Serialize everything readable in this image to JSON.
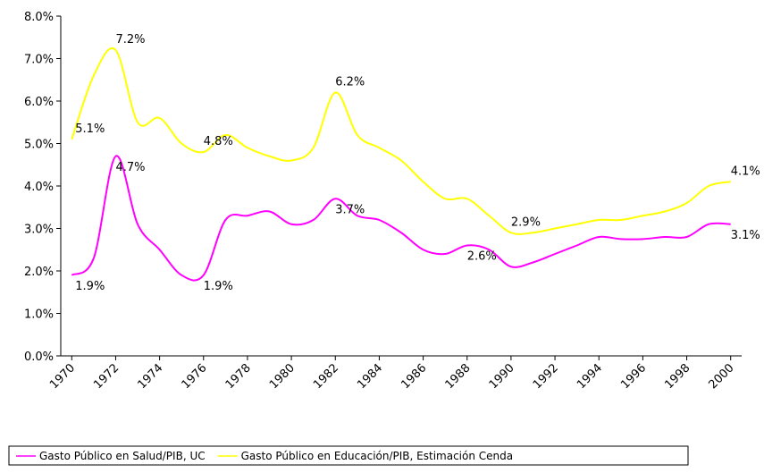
{
  "chart_data": {
    "type": "line",
    "x": [
      1970,
      1971,
      1972,
      1973,
      1974,
      1975,
      1976,
      1977,
      1978,
      1979,
      1980,
      1981,
      1982,
      1983,
      1984,
      1985,
      1986,
      1987,
      1988,
      1989,
      1990,
      1991,
      1992,
      1993,
      1994,
      1995,
      1996,
      1997,
      1998,
      1999,
      2000
    ],
    "series": [
      {
        "name": "Gasto Público en Salud/PIB, UC",
        "color": "#ff00ff",
        "values": [
          1.9,
          2.3,
          4.7,
          3.1,
          2.5,
          1.9,
          1.9,
          3.2,
          3.3,
          3.4,
          3.1,
          3.2,
          3.7,
          3.3,
          3.2,
          2.9,
          2.5,
          2.4,
          2.6,
          2.5,
          2.1,
          2.2,
          2.4,
          2.6,
          2.8,
          2.75,
          2.75,
          2.8,
          2.8,
          3.1,
          3.1
        ],
        "value_labels": [
          "1.9%",
          null,
          "4.7%",
          null,
          null,
          null,
          "1.9%",
          null,
          null,
          null,
          null,
          null,
          "3.7%",
          null,
          null,
          null,
          null,
          null,
          "2.6%",
          null,
          null,
          null,
          null,
          null,
          null,
          null,
          null,
          null,
          null,
          null,
          "3.1%"
        ]
      },
      {
        "name": "Gasto Público en Educación/PIB, Estimación Cenda",
        "color": "#ffff00",
        "values": [
          5.1,
          6.6,
          7.2,
          5.5,
          5.6,
          5.0,
          4.8,
          5.2,
          4.9,
          4.7,
          4.6,
          4.9,
          6.2,
          5.2,
          4.9,
          4.6,
          4.1,
          3.7,
          3.7,
          3.3,
          2.9,
          2.9,
          3.0,
          3.1,
          3.2,
          3.2,
          3.3,
          3.4,
          3.6,
          4.0,
          4.1
        ],
        "value_labels": [
          "5.1%",
          null,
          "7.2%",
          null,
          null,
          null,
          "4.8%",
          null,
          null,
          null,
          null,
          null,
          "6.2%",
          null,
          null,
          null,
          null,
          null,
          null,
          null,
          "2.9%",
          null,
          null,
          null,
          null,
          null,
          null,
          null,
          null,
          null,
          "4.1%"
        ]
      }
    ],
    "xlim": [
      1969.5,
      2000.5
    ],
    "xticks": [
      1970,
      1972,
      1974,
      1976,
      1978,
      1980,
      1982,
      1984,
      1986,
      1988,
      1990,
      1992,
      1994,
      1996,
      1998,
      2000
    ],
    "ylim": [
      0,
      8
    ],
    "yticks": [
      {
        "value": 0,
        "label": "0.0%"
      },
      {
        "value": 1,
        "label": "1.0%"
      },
      {
        "value": 2,
        "label": "2.0%"
      },
      {
        "value": 3,
        "label": "3.0%"
      },
      {
        "value": 4,
        "label": "4.0%"
      },
      {
        "value": 5,
        "label": "5.0%"
      },
      {
        "value": 6,
        "label": "6.0%"
      },
      {
        "value": 7,
        "label": "7.0%"
      },
      {
        "value": 8,
        "label": "8.0%"
      }
    ],
    "legend": "bottom"
  }
}
